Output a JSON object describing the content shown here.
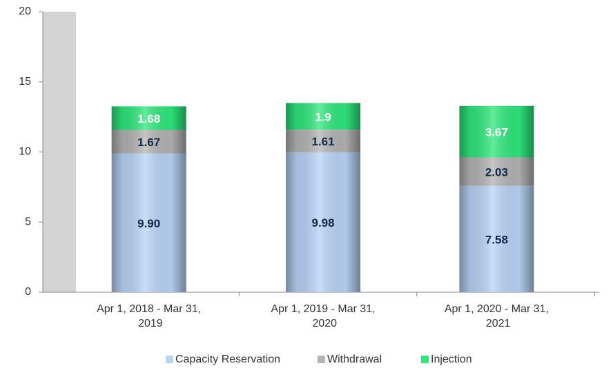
{
  "chart_data": {
    "type": "stacked_bar",
    "categories": [
      "Apr 1, 2018 - Mar 31, 2019",
      "Apr 1, 2019 - Mar 31, 2020",
      "Apr 1, 2020 - Mar 31, 2021"
    ],
    "series": [
      {
        "name": "Capacity Reservation",
        "color": "#b9d4f7",
        "values": [
          9.9,
          9.98,
          7.58
        ],
        "value_labels": [
          "9.90",
          "9.98",
          "7.58"
        ],
        "label_color": "#13294b"
      },
      {
        "name": "Withdrawal",
        "color": "#b4b4b4",
        "values": [
          1.67,
          1.61,
          2.03
        ],
        "label_color": "#13294b"
      },
      {
        "name": "Injection",
        "color": "#2ee87c",
        "values": [
          1.68,
          1.9,
          3.67
        ],
        "label_color": "#ffffff"
      }
    ],
    "ylim": [
      0,
      20
    ],
    "yticks": [
      0,
      5,
      10,
      15,
      20
    ]
  }
}
